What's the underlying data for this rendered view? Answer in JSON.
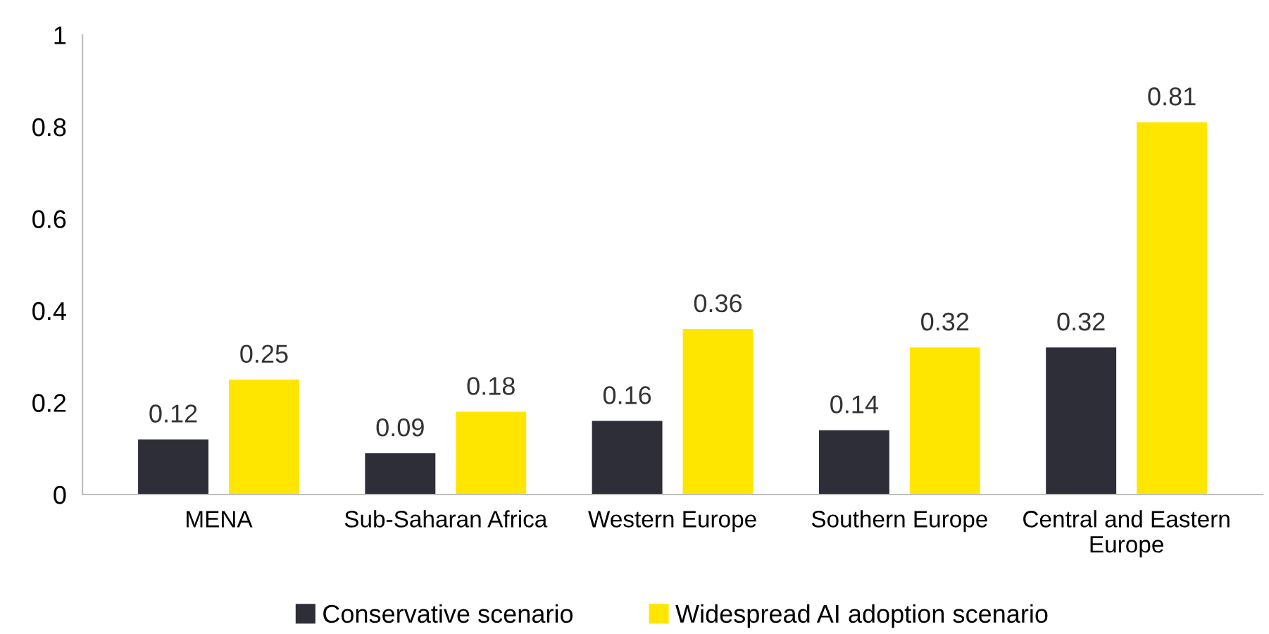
{
  "chart_data": {
    "type": "bar",
    "categories": [
      "MENA",
      "Sub-Saharan Africa",
      "Western Europe",
      "Southern Europe",
      "Central and Eastern\nEurope"
    ],
    "series": [
      {
        "name": "Conservative scenario",
        "color": "#2e2e38",
        "values": [
          0.12,
          0.09,
          0.16,
          0.14,
          0.32
        ]
      },
      {
        "name": "Widespread AI adoption scenario",
        "color": "#ffe600",
        "values": [
          0.25,
          0.18,
          0.36,
          0.32,
          0.81
        ]
      }
    ],
    "ylim": [
      0,
      1
    ],
    "yticks": [
      0,
      0.2,
      0.4,
      0.6,
      0.8,
      1
    ],
    "grid": false,
    "legend": "bottom",
    "data_labels": true
  }
}
